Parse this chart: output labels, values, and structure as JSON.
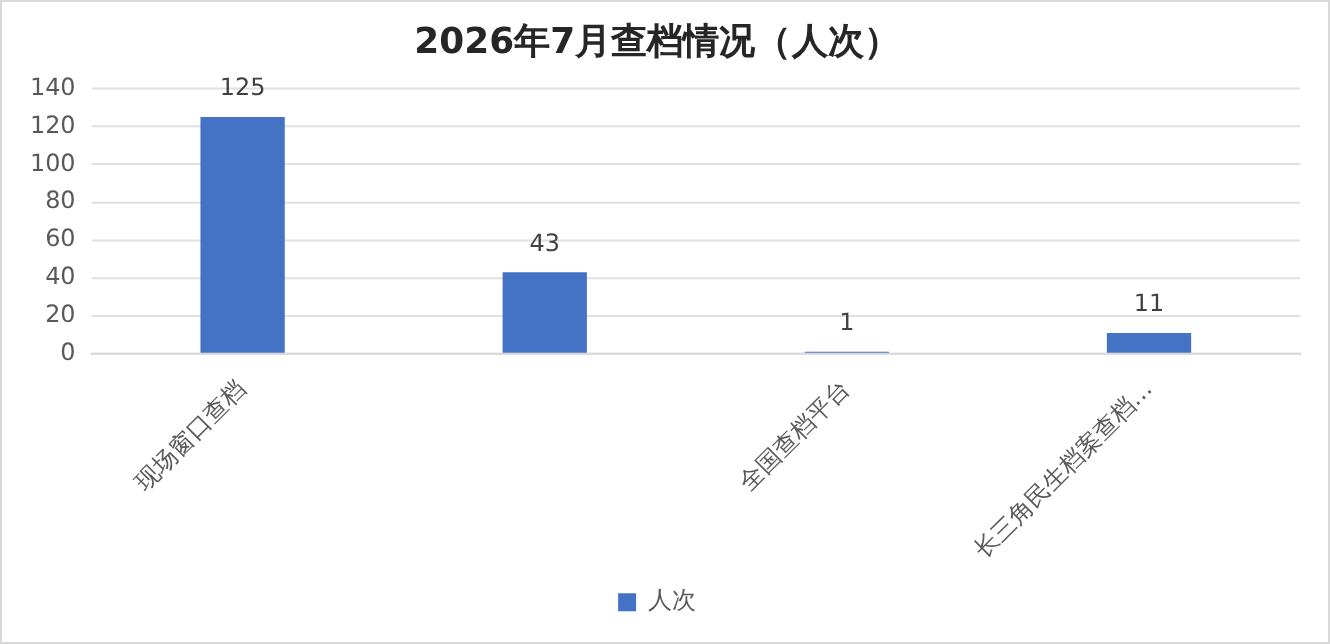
{
  "chart_data": {
    "type": "bar",
    "title": "2026年7月查档情况（人次）",
    "categories": [
      "现场窗口查档",
      null,
      "全国查档平台",
      "长三角民生档案查档…"
    ],
    "series": [
      {
        "name": "人次",
        "color": "#4472c4",
        "values": [
          125,
          43,
          1,
          11
        ]
      }
    ],
    "ylim": [
      0,
      140
    ],
    "yticks": [
      0,
      20,
      40,
      60,
      80,
      100,
      120,
      140
    ],
    "grid": "y",
    "legend": "bottom",
    "data_labels": true
  }
}
